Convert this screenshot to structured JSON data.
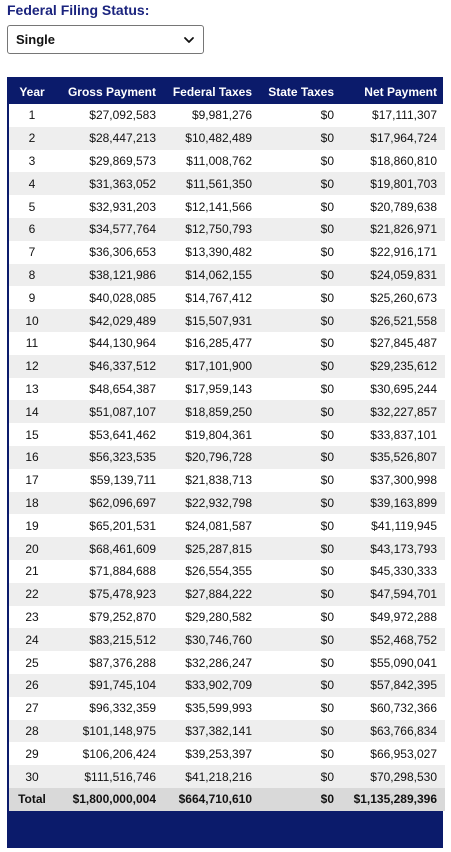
{
  "filing": {
    "label": "Federal Filing Status:",
    "selected": "Single",
    "icon": "chevron-down-icon"
  },
  "table": {
    "headers": [
      "Year",
      "Gross Payment",
      "Federal Taxes",
      "State Taxes",
      "Net Payment"
    ],
    "rows": [
      [
        "1",
        "$27,092,583",
        "$9,981,276",
        "$0",
        "$17,111,307"
      ],
      [
        "2",
        "$28,447,213",
        "$10,482,489",
        "$0",
        "$17,964,724"
      ],
      [
        "3",
        "$29,869,573",
        "$11,008,762",
        "$0",
        "$18,860,810"
      ],
      [
        "4",
        "$31,363,052",
        "$11,561,350",
        "$0",
        "$19,801,703"
      ],
      [
        "5",
        "$32,931,203",
        "$12,141,566",
        "$0",
        "$20,789,638"
      ],
      [
        "6",
        "$34,577,764",
        "$12,750,793",
        "$0",
        "$21,826,971"
      ],
      [
        "7",
        "$36,306,653",
        "$13,390,482",
        "$0",
        "$22,916,171"
      ],
      [
        "8",
        "$38,121,986",
        "$14,062,155",
        "$0",
        "$24,059,831"
      ],
      [
        "9",
        "$40,028,085",
        "$14,767,412",
        "$0",
        "$25,260,673"
      ],
      [
        "10",
        "$42,029,489",
        "$15,507,931",
        "$0",
        "$26,521,558"
      ],
      [
        "11",
        "$44,130,964",
        "$16,285,477",
        "$0",
        "$27,845,487"
      ],
      [
        "12",
        "$46,337,512",
        "$17,101,900",
        "$0",
        "$29,235,612"
      ],
      [
        "13",
        "$48,654,387",
        "$17,959,143",
        "$0",
        "$30,695,244"
      ],
      [
        "14",
        "$51,087,107",
        "$18,859,250",
        "$0",
        "$32,227,857"
      ],
      [
        "15",
        "$53,641,462",
        "$19,804,361",
        "$0",
        "$33,837,101"
      ],
      [
        "16",
        "$56,323,535",
        "$20,796,728",
        "$0",
        "$35,526,807"
      ],
      [
        "17",
        "$59,139,711",
        "$21,838,713",
        "$0",
        "$37,300,998"
      ],
      [
        "18",
        "$62,096,697",
        "$22,932,798",
        "$0",
        "$39,163,899"
      ],
      [
        "19",
        "$65,201,531",
        "$24,081,587",
        "$0",
        "$41,119,945"
      ],
      [
        "20",
        "$68,461,609",
        "$25,287,815",
        "$0",
        "$43,173,793"
      ],
      [
        "21",
        "$71,884,688",
        "$26,554,355",
        "$0",
        "$45,330,333"
      ],
      [
        "22",
        "$75,478,923",
        "$27,884,222",
        "$0",
        "$47,594,701"
      ],
      [
        "23",
        "$79,252,870",
        "$29,280,582",
        "$0",
        "$49,972,288"
      ],
      [
        "24",
        "$83,215,512",
        "$30,746,760",
        "$0",
        "$52,468,752"
      ],
      [
        "25",
        "$87,376,288",
        "$32,286,247",
        "$0",
        "$55,090,041"
      ],
      [
        "26",
        "$91,745,104",
        "$33,902,709",
        "$0",
        "$57,842,395"
      ],
      [
        "27",
        "$96,332,359",
        "$35,599,993",
        "$0",
        "$60,732,366"
      ],
      [
        "28",
        "$101,148,975",
        "$37,382,141",
        "$0",
        "$63,766,834"
      ],
      [
        "29",
        "$106,206,424",
        "$39,253,397",
        "$0",
        "$66,953,027"
      ],
      [
        "30",
        "$111,516,746",
        "$41,218,216",
        "$0",
        "$70,298,530"
      ]
    ],
    "total": [
      "Total",
      "$1,800,000,004",
      "$664,710,610",
      "$0",
      "$1,135,289,396"
    ]
  },
  "colors": {
    "header_bg": "#0b1b6b",
    "label": "#1a237e",
    "stripe": "#eeeeee",
    "total_bg": "#d9d9d9"
  }
}
